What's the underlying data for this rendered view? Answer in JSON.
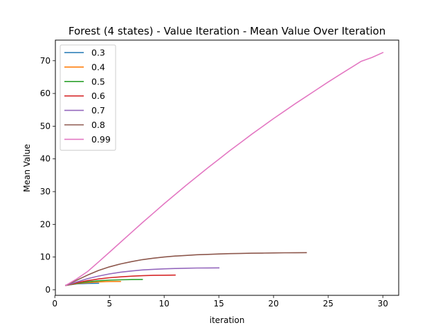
{
  "chart_data": {
    "type": "line",
    "title": "Forest (4 states) - Value Iteration - Mean Value Over Iteration",
    "xlabel": "iteration",
    "ylabel": "Mean Value",
    "xlim": [
      0.05,
      31.45
    ],
    "ylim": [
      -1.7,
      76.3
    ],
    "xticks": [
      0,
      5,
      10,
      15,
      20,
      25,
      30
    ],
    "yticks": [
      0,
      10,
      20,
      30,
      40,
      50,
      60,
      70
    ],
    "grid": false,
    "legend_position": "top-left",
    "series": [
      {
        "name": "0.3",
        "color": "#1f77b4",
        "x": [
          1,
          2,
          3,
          4
        ],
        "y": [
          1.35,
          1.8,
          1.95,
          2.0
        ]
      },
      {
        "name": "0.4",
        "color": "#ff7f0e",
        "x": [
          1,
          2,
          3,
          4,
          5,
          6
        ],
        "y": [
          1.35,
          1.9,
          2.2,
          2.4,
          2.5,
          2.55
        ]
      },
      {
        "name": "0.5",
        "color": "#2ca02c",
        "x": [
          1,
          2,
          3,
          4,
          5,
          6,
          7,
          8
        ],
        "y": [
          1.35,
          2.0,
          2.45,
          2.75,
          2.95,
          3.05,
          3.12,
          3.15
        ]
      },
      {
        "name": "0.6",
        "color": "#d62728",
        "x": [
          1,
          2,
          3,
          4,
          5,
          6,
          7,
          8,
          9,
          10,
          11
        ],
        "y": [
          1.35,
          2.15,
          2.8,
          3.3,
          3.7,
          3.95,
          4.15,
          4.3,
          4.4,
          4.45,
          4.5
        ]
      },
      {
        "name": "0.7",
        "color": "#9467bd",
        "x": [
          1,
          2,
          3,
          4,
          5,
          6,
          7,
          8,
          9,
          10,
          11,
          12,
          13,
          14,
          15
        ],
        "y": [
          1.35,
          2.4,
          3.4,
          4.2,
          4.85,
          5.35,
          5.75,
          6.05,
          6.25,
          6.4,
          6.5,
          6.58,
          6.64,
          6.68,
          6.7
        ]
      },
      {
        "name": "0.8",
        "color": "#8c564b",
        "x": [
          1,
          2,
          3,
          4,
          5,
          6,
          7,
          8,
          9,
          10,
          11,
          12,
          13,
          14,
          15,
          16,
          17,
          18,
          19,
          20,
          21,
          22,
          23
        ],
        "y": [
          1.35,
          2.9,
          4.5,
          5.9,
          7.0,
          7.9,
          8.6,
          9.2,
          9.65,
          10.0,
          10.3,
          10.5,
          10.7,
          10.82,
          10.95,
          11.05,
          11.12,
          11.18,
          11.22,
          11.26,
          11.3,
          11.32,
          11.35
        ]
      },
      {
        "name": "0.99",
        "color": "#e377c2",
        "x": [
          1,
          2,
          3,
          4,
          5,
          6,
          7,
          8,
          9,
          10,
          11,
          12,
          13,
          14,
          15,
          16,
          17,
          18,
          19,
          20,
          21,
          22,
          23,
          24,
          25,
          26,
          27,
          28,
          29,
          30
        ],
        "y": [
          1.35,
          3.3,
          5.6,
          8.5,
          11.5,
          14.5,
          17.5,
          20.5,
          23.4,
          26.3,
          29.1,
          31.9,
          34.6,
          37.3,
          39.9,
          42.5,
          45.0,
          47.5,
          49.9,
          52.3,
          54.6,
          56.9,
          59.1,
          61.3,
          63.5,
          65.6,
          67.7,
          69.8,
          71.0,
          72.5
        ]
      }
    ]
  }
}
